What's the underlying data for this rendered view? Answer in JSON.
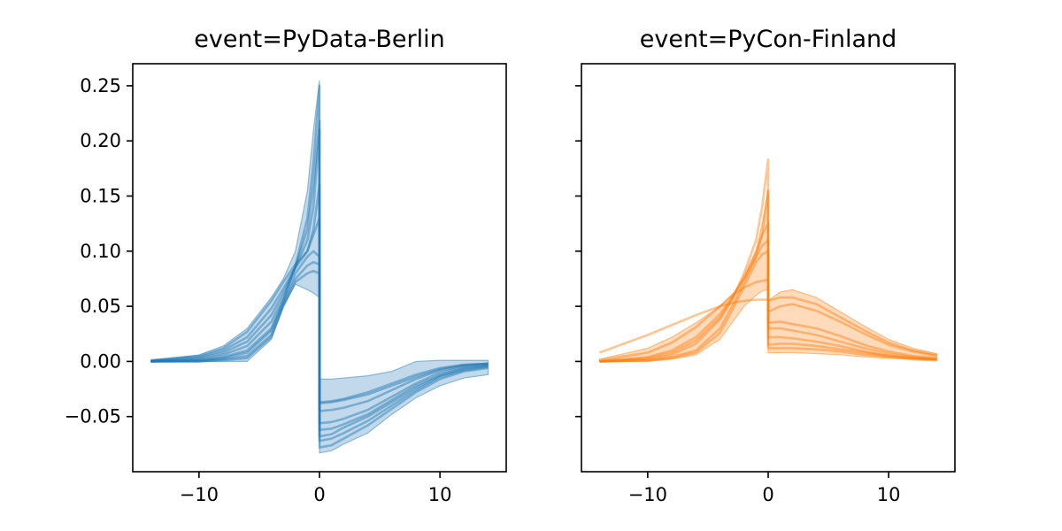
{
  "chart_data": [
    {
      "type": "line",
      "title": "event=PyData-Berlin",
      "xlabel": "",
      "ylabel": "",
      "color": "#1f77b4",
      "xlim": [
        -15.5,
        15.5
      ],
      "ylim": [
        -0.1,
        0.27
      ],
      "xticks": [
        -10,
        0,
        10
      ],
      "xtick_labels": [
        "−10",
        "0",
        "10"
      ],
      "yticks": [
        -0.05,
        0.0,
        0.05,
        0.1,
        0.15,
        0.2,
        0.25
      ],
      "ytick_labels": [
        "−0.05",
        "0.00",
        "0.05",
        "0.10",
        "0.15",
        "0.20",
        "0.25"
      ],
      "grid": false,
      "band": {
        "x": [
          -14,
          -10,
          -8,
          -6,
          -4,
          -3,
          -2,
          -1,
          -0.5,
          -0.001,
          0.001,
          1,
          2,
          4,
          6,
          8,
          10,
          12,
          14
        ],
        "upper": [
          0.001,
          0.006,
          0.014,
          0.03,
          0.058,
          0.075,
          0.1,
          0.155,
          0.21,
          0.255,
          -0.016,
          -0.016,
          -0.015,
          -0.013,
          -0.009,
          0.0,
          0.001,
          0.001,
          0.001
        ],
        "lower": [
          0.0,
          0.0,
          0.0,
          0.0,
          0.02,
          0.05,
          0.07,
          0.065,
          0.062,
          0.058,
          -0.083,
          -0.081,
          -0.075,
          -0.065,
          -0.048,
          -0.033,
          -0.022,
          -0.015,
          -0.012
        ]
      },
      "series": [
        {
          "values": [
            0.001,
            0.005,
            0.012,
            0.027,
            0.055,
            0.072,
            0.088,
            0.1,
            0.115,
            0.13,
            -0.037,
            -0.036,
            -0.034,
            -0.028,
            -0.02,
            -0.012,
            -0.006,
            -0.003,
            -0.002
          ]
        },
        {
          "values": [
            0.001,
            0.004,
            0.01,
            0.022,
            0.048,
            0.066,
            0.085,
            0.1,
            0.12,
            0.16,
            -0.045,
            -0.044,
            -0.042,
            -0.036,
            -0.026,
            -0.016,
            -0.008,
            -0.004,
            -0.002
          ]
        },
        {
          "values": [
            0.0,
            0.003,
            0.008,
            0.018,
            0.042,
            0.062,
            0.085,
            0.11,
            0.14,
            0.21,
            -0.056,
            -0.055,
            -0.052,
            -0.044,
            -0.032,
            -0.02,
            -0.01,
            -0.005,
            -0.003
          ]
        },
        {
          "values": [
            0.0,
            0.002,
            0.006,
            0.014,
            0.036,
            0.058,
            0.086,
            0.12,
            0.16,
            0.218,
            -0.062,
            -0.061,
            -0.057,
            -0.048,
            -0.035,
            -0.022,
            -0.012,
            -0.006,
            -0.004
          ]
        },
        {
          "values": [
            0.0,
            0.001,
            0.004,
            0.01,
            0.03,
            0.055,
            0.087,
            0.13,
            0.18,
            0.25,
            -0.072,
            -0.07,
            -0.065,
            -0.054,
            -0.04,
            -0.026,
            -0.014,
            -0.008,
            -0.005
          ]
        },
        {
          "values": [
            0.0,
            0.001,
            0.003,
            0.008,
            0.028,
            0.054,
            0.08,
            0.095,
            0.1,
            0.095,
            -0.038,
            -0.037,
            -0.035,
            -0.03,
            -0.022,
            -0.014,
            -0.007,
            -0.003,
            -0.002
          ]
        },
        {
          "values": [
            0.0,
            0.0,
            0.002,
            0.005,
            0.024,
            0.052,
            0.075,
            0.087,
            0.09,
            0.088,
            -0.068,
            -0.066,
            -0.06,
            -0.05,
            -0.037,
            -0.024,
            -0.013,
            -0.007,
            -0.004
          ]
        },
        {
          "values": [
            0.0,
            0.0,
            0.001,
            0.003,
            0.022,
            0.05,
            0.072,
            0.08,
            0.082,
            0.08,
            -0.078,
            -0.076,
            -0.07,
            -0.058,
            -0.043,
            -0.028,
            -0.016,
            -0.009,
            -0.006
          ]
        }
      ]
    },
    {
      "type": "line",
      "title": "event=PyCon-Finland",
      "xlabel": "",
      "ylabel": "",
      "color": "#ff7f0e",
      "xlim": [
        -15.5,
        15.5
      ],
      "ylim": [
        -0.1,
        0.27
      ],
      "xticks": [
        -10,
        0,
        10
      ],
      "xtick_labels": [
        "−10",
        "0",
        "10"
      ],
      "yticks": [
        -0.05,
        0.0,
        0.05,
        0.1,
        0.15,
        0.2,
        0.25
      ],
      "ytick_labels": [
        "",
        "",
        "",
        "",
        "",
        "",
        ""
      ],
      "grid": false,
      "band": {
        "x": [
          -14,
          -10,
          -8,
          -6,
          -4,
          -3,
          -2,
          -1,
          -0.5,
          -0.001,
          0.001,
          1,
          2,
          4,
          6,
          8,
          10,
          12,
          14
        ],
        "upper": [
          0.002,
          0.012,
          0.022,
          0.035,
          0.05,
          0.06,
          0.075,
          0.1,
          0.125,
          0.155,
          0.055,
          0.063,
          0.065,
          0.058,
          0.045,
          0.032,
          0.02,
          0.012,
          0.007
        ],
        "lower": [
          0.0,
          0.0,
          0.002,
          0.006,
          0.02,
          0.035,
          0.05,
          0.06,
          0.064,
          0.065,
          0.008,
          0.008,
          0.008,
          0.007,
          0.006,
          0.004,
          0.003,
          0.002,
          0.001
        ]
      },
      "series": [
        {
          "values": [
            0.008,
            0.024,
            0.033,
            0.042,
            0.05,
            0.053,
            0.055,
            0.056,
            0.056,
            0.056,
            0.055,
            0.058,
            0.058,
            0.052,
            0.04,
            0.028,
            0.017,
            0.01,
            0.006
          ]
        },
        {
          "values": [
            0.001,
            0.008,
            0.017,
            0.031,
            0.05,
            0.06,
            0.067,
            0.072,
            0.073,
            0.074,
            0.03,
            0.03,
            0.028,
            0.024,
            0.018,
            0.012,
            0.007,
            0.004,
            0.002
          ]
        },
        {
          "values": [
            0.0,
            0.004,
            0.01,
            0.022,
            0.043,
            0.058,
            0.075,
            0.095,
            0.115,
            0.155,
            0.022,
            0.022,
            0.021,
            0.018,
            0.014,
            0.009,
            0.005,
            0.003,
            0.002
          ]
        },
        {
          "values": [
            0.0,
            0.002,
            0.006,
            0.016,
            0.038,
            0.056,
            0.08,
            0.11,
            0.14,
            0.183,
            0.035,
            0.036,
            0.034,
            0.03,
            0.023,
            0.015,
            0.009,
            0.005,
            0.003
          ]
        },
        {
          "values": [
            0.0,
            0.003,
            0.008,
            0.019,
            0.04,
            0.057,
            0.077,
            0.1,
            0.115,
            0.125,
            0.015,
            0.016,
            0.016,
            0.014,
            0.011,
            0.008,
            0.005,
            0.003,
            0.002
          ]
        },
        {
          "values": [
            0.0,
            0.001,
            0.004,
            0.01,
            0.03,
            0.05,
            0.072,
            0.095,
            0.105,
            0.11,
            0.012,
            0.012,
            0.012,
            0.011,
            0.009,
            0.006,
            0.004,
            0.002,
            0.001
          ]
        },
        {
          "values": [
            0.0,
            0.001,
            0.003,
            0.008,
            0.026,
            0.046,
            0.068,
            0.09,
            0.097,
            0.1,
            0.045,
            0.05,
            0.052,
            0.046,
            0.036,
            0.025,
            0.015,
            0.009,
            0.005
          ]
        }
      ]
    }
  ]
}
